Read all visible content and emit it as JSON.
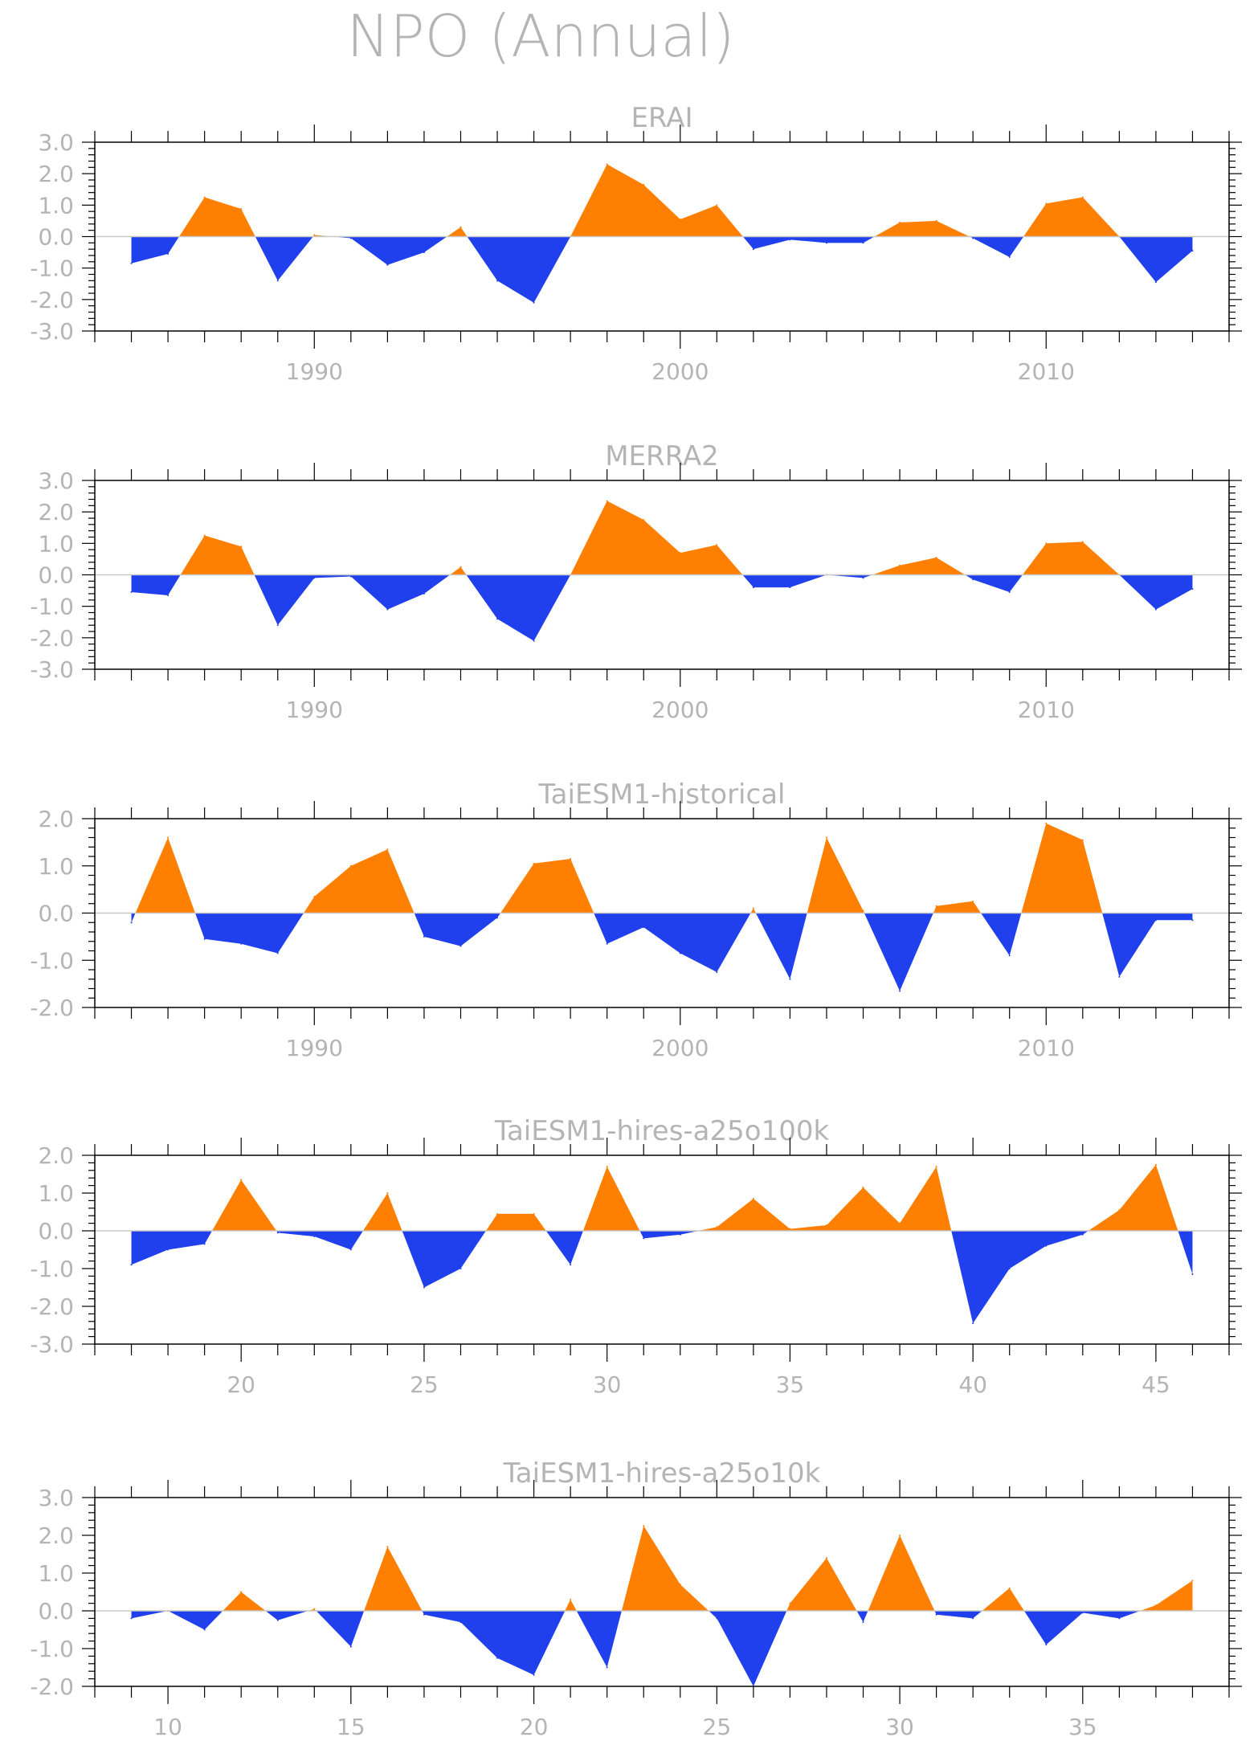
{
  "title": "NPO (Annual)",
  "colors": {
    "positive": "#ff8000",
    "negative": "#2040ee",
    "axis": "#000000",
    "text": "#b4b4b4",
    "zero_line": "#c8c8c8"
  },
  "chart_data": [
    {
      "type": "area",
      "title": "ERAI",
      "xlabel": "",
      "ylabel": "",
      "xlim": [
        1984,
        2015
      ],
      "ylim": [
        -3.0,
        3.0
      ],
      "yticks": [
        "3.0",
        "2.0",
        "1.0",
        "0.0",
        "-1.0",
        "-2.0",
        "-3.0"
      ],
      "xticks": [
        "1990",
        "2000",
        "2010"
      ],
      "x": [
        1985,
        1986,
        1987,
        1988,
        1989,
        1990,
        1991,
        1992,
        1993,
        1994,
        1995,
        1996,
        1997,
        1998,
        1999,
        2000,
        2001,
        2002,
        2003,
        2004,
        2005,
        2006,
        2007,
        2008,
        2009,
        2010,
        2011,
        2012,
        2013,
        2014
      ],
      "values": [
        -0.85,
        -0.55,
        1.25,
        0.88,
        -1.4,
        0.05,
        -0.05,
        -0.9,
        -0.5,
        0.3,
        -1.4,
        -2.1,
        0.0,
        2.3,
        1.65,
        0.55,
        1.0,
        -0.4,
        -0.1,
        -0.2,
        -0.2,
        0.45,
        0.5,
        -0.05,
        -0.65,
        1.05,
        1.25,
        0.0,
        -1.45,
        -0.45
      ]
    },
    {
      "type": "area",
      "title": "MERRA2",
      "xlabel": "",
      "ylabel": "",
      "xlim": [
        1984,
        2015
      ],
      "ylim": [
        -3.0,
        3.0
      ],
      "yticks": [
        "3.0",
        "2.0",
        "1.0",
        "0.0",
        "-1.0",
        "-2.0",
        "-3.0"
      ],
      "xticks": [
        "1990",
        "2000",
        "2010"
      ],
      "x": [
        1985,
        1986,
        1987,
        1988,
        1989,
        1990,
        1991,
        1992,
        1993,
        1994,
        1995,
        1996,
        1997,
        1998,
        1999,
        2000,
        2001,
        2002,
        2003,
        2004,
        2005,
        2006,
        2007,
        2008,
        2009,
        2010,
        2011,
        2012,
        2013,
        2014
      ],
      "values": [
        -0.55,
        -0.65,
        1.25,
        0.9,
        -1.6,
        -0.1,
        -0.05,
        -1.1,
        -0.6,
        0.25,
        -1.4,
        -2.1,
        0.0,
        2.35,
        1.75,
        0.7,
        0.95,
        -0.4,
        -0.4,
        0.0,
        -0.1,
        0.3,
        0.55,
        -0.15,
        -0.55,
        1.0,
        1.05,
        0.0,
        -1.1,
        -0.45
      ]
    },
    {
      "type": "area",
      "title": "TaiESM1-historical",
      "xlabel": "",
      "ylabel": "",
      "xlim": [
        1984,
        2015
      ],
      "ylim": [
        -2.0,
        2.0
      ],
      "yticks": [
        "2.0",
        "1.0",
        "0.0",
        "-1.0",
        "-2.0"
      ],
      "xticks": [
        "1990",
        "2000",
        "2010"
      ],
      "x": [
        1985,
        1986,
        1987,
        1988,
        1989,
        1990,
        1991,
        1992,
        1993,
        1994,
        1995,
        1996,
        1997,
        1998,
        1999,
        2000,
        2001,
        2002,
        2003,
        2004,
        2005,
        2006,
        2007,
        2008,
        2009,
        2010,
        2011,
        2012,
        2013,
        2014
      ],
      "values": [
        -0.2,
        1.6,
        -0.55,
        -0.65,
        -0.85,
        0.35,
        1.0,
        1.35,
        -0.5,
        -0.7,
        -0.1,
        1.05,
        1.15,
        -0.65,
        -0.3,
        -0.85,
        -1.25,
        0.1,
        -1.4,
        1.6,
        0.05,
        -1.65,
        0.15,
        0.25,
        -0.9,
        1.9,
        1.55,
        -1.35,
        -0.15,
        -0.15
      ]
    },
    {
      "type": "area",
      "title": "TaiESM1-hires-a25o100k",
      "xlabel": "",
      "ylabel": "",
      "xlim": [
        16,
        47
      ],
      "ylim": [
        -3.0,
        2.0
      ],
      "yticks": [
        "2.0",
        "1.0",
        "0.0",
        "-1.0",
        "-2.0",
        "-3.0"
      ],
      "xticks": [
        "20",
        "25",
        "30",
        "35",
        "40",
        "45"
      ],
      "x": [
        17,
        18,
        19,
        20,
        21,
        22,
        23,
        24,
        25,
        26,
        27,
        28,
        29,
        30,
        31,
        32,
        33,
        34,
        35,
        36,
        37,
        38,
        39,
        40,
        41,
        42,
        43,
        44,
        45,
        46
      ],
      "values": [
        -0.9,
        -0.5,
        -0.35,
        1.35,
        -0.05,
        -0.15,
        -0.5,
        1.0,
        -1.5,
        -1.0,
        0.45,
        0.45,
        -0.9,
        1.7,
        -0.2,
        -0.1,
        0.1,
        0.85,
        0.05,
        0.15,
        1.15,
        0.2,
        1.7,
        -2.45,
        -1.0,
        -0.4,
        -0.1,
        0.55,
        1.75,
        -1.15
      ]
    },
    {
      "type": "area",
      "title": "TaiESM1-hires-a25o10k",
      "xlabel": "",
      "ylabel": "",
      "xlim": [
        8,
        39
      ],
      "ylim": [
        -2.0,
        3.0
      ],
      "yticks": [
        "3.0",
        "2.0",
        "1.0",
        "0.0",
        "-1.0",
        "-2.0"
      ],
      "xticks": [
        "10",
        "15",
        "20",
        "25",
        "30",
        "35"
      ],
      "x": [
        9,
        10,
        11,
        12,
        13,
        14,
        15,
        16,
        17,
        18,
        19,
        20,
        21,
        22,
        23,
        24,
        25,
        26,
        27,
        28,
        29,
        30,
        31,
        32,
        33,
        34,
        35,
        36,
        37,
        38
      ],
      "values": [
        -0.2,
        0.0,
        -0.5,
        0.5,
        -0.25,
        0.05,
        -0.95,
        1.7,
        -0.1,
        -0.3,
        -1.25,
        -1.7,
        0.3,
        -1.5,
        2.25,
        0.7,
        -0.2,
        -2.0,
        0.2,
        1.4,
        -0.3,
        2.0,
        -0.1,
        -0.2,
        0.6,
        -0.9,
        -0.05,
        -0.2,
        0.15,
        0.8
      ]
    }
  ]
}
